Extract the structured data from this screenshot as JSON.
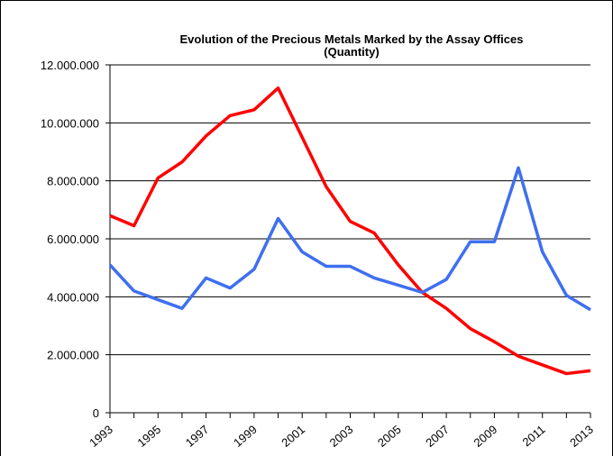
{
  "chart_data": {
    "type": "line",
    "title": "Evolution of the Precious Metals Marked by the Assay Offices",
    "subtitle": "(Quantity)",
    "categories": [
      "1993",
      null,
      "1995",
      null,
      "1997",
      null,
      "1999",
      null,
      "2001",
      null,
      "2003",
      null,
      "2005",
      null,
      "2007",
      null,
      "2009",
      null,
      "2011",
      null,
      "2013"
    ],
    "series": [
      {
        "color": "#ff0000",
        "values": [
          6800000,
          6450000,
          8100000,
          8650000,
          9550000,
          10250000,
          10450000,
          11200000,
          9500000,
          7800000,
          6600000,
          6200000,
          5100000,
          4150000,
          3600000,
          2900000,
          2450000,
          1950000,
          1650000,
          1350000,
          1450000
        ]
      },
      {
        "color": "#3f6ff0",
        "values": [
          5100000,
          4200000,
          3900000,
          3600000,
          4650000,
          4300000,
          4950000,
          6700000,
          5550000,
          5050000,
          5050000,
          4650000,
          4400000,
          4150000,
          4600000,
          5900000,
          5900000,
          8450000,
          5550000,
          4050000,
          3550000
        ]
      }
    ],
    "ylim": [
      0,
      12000000
    ],
    "yticks": [
      0,
      {
        "value": 2000000,
        "label": "2.000.000"
      },
      {
        "value": 4000000,
        "label": "4.000.000"
      },
      {
        "value": 6000000,
        "label": "6.000.000"
      },
      {
        "value": 8000000,
        "label": "8.000.000"
      },
      {
        "value": 10000000,
        "label": "10.000.000"
      },
      {
        "value": 12000000,
        "label": "12.000.000"
      }
    ],
    "grid": true
  }
}
